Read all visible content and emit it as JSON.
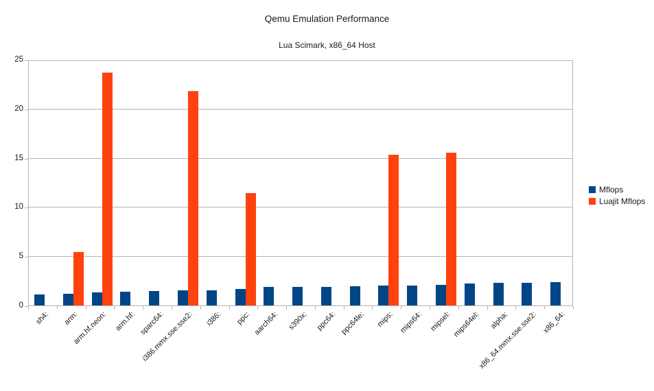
{
  "title": "Qemu Emulation Performance",
  "subtitle": "Lua Scimark, x86_64 Host",
  "colors": {
    "mflops": "#004586",
    "luajit_mflops": "#ff420e",
    "grid": "#b3b3b3",
    "text": "#1a1a1a",
    "background": "#ffffff"
  },
  "legend": {
    "position": "right",
    "items": [
      {
        "label": "Mflops",
        "color": "#004586"
      },
      {
        "label": "Luajit Mflops",
        "color": "#ff420e"
      }
    ]
  },
  "chart_data": {
    "type": "bar",
    "title": "Qemu Emulation Performance",
    "subtitle": "Lua Scimark, x86_64 Host",
    "xlabel": "",
    "ylabel": "",
    "ylim": [
      0,
      25
    ],
    "yticks": [
      0,
      5,
      10,
      15,
      20,
      25
    ],
    "grid": true,
    "legend_position": "right",
    "categories": [
      "sh4:",
      "arm:",
      "arm.hf.neon:",
      "arm.hf:",
      "sparc64:",
      "i386.mmx.sse.sse2:",
      "i386:",
      "ppc:",
      "aarch64:",
      "s390x:",
      "ppc64:",
      "ppc64le:",
      "mips:",
      "mips64:",
      "mipsel:",
      "mips64el:",
      "alpha:",
      "x86_64.mmx.sse.sse2:",
      "x86_64:"
    ],
    "series": [
      {
        "name": "Mflops",
        "color": "#004586",
        "values": [
          1.1,
          1.2,
          1.3,
          1.4,
          1.45,
          1.5,
          1.55,
          1.65,
          1.85,
          1.85,
          1.9,
          1.95,
          2.0,
          2.05,
          2.1,
          2.2,
          2.3,
          2.3,
          2.4
        ]
      },
      {
        "name": "Luajit Mflops",
        "color": "#ff420e",
        "values": [
          null,
          5.4,
          23.7,
          null,
          null,
          21.8,
          null,
          11.4,
          null,
          null,
          null,
          null,
          15.3,
          null,
          15.5,
          null,
          null,
          null,
          null
        ]
      }
    ]
  }
}
